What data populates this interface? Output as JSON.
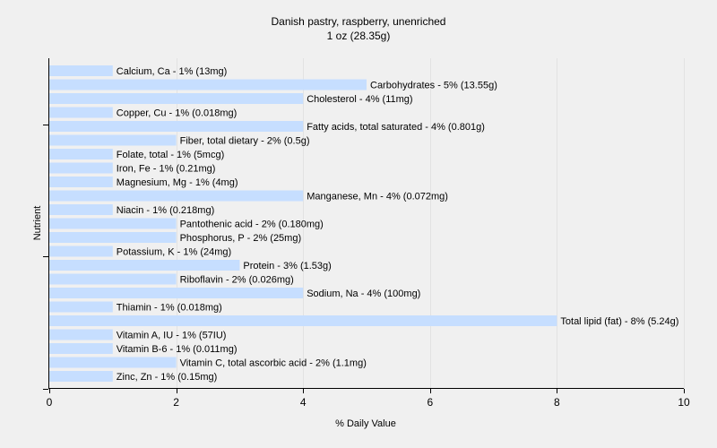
{
  "chart_data": {
    "type": "bar",
    "orientation": "horizontal",
    "title": "Danish pastry, raspberry, unenriched",
    "subtitle": "1 oz (28.35g)",
    "xlabel": "% Daily Value",
    "ylabel": "Nutrient",
    "xlim": [
      0,
      10
    ],
    "xticks": [
      0,
      2,
      4,
      6,
      8,
      10
    ],
    "grid": true,
    "bar_color": "#c6deff",
    "categories": [
      "Calcium, Ca",
      "Carbohydrates",
      "Cholesterol",
      "Copper, Cu",
      "Fatty acids, total saturated",
      "Fiber, total dietary",
      "Folate, total",
      "Iron, Fe",
      "Magnesium, Mg",
      "Manganese, Mn",
      "Niacin",
      "Pantothenic acid",
      "Phosphorus, P",
      "Potassium, K",
      "Protein",
      "Riboflavin",
      "Sodium, Na",
      "Thiamin",
      "Total lipid (fat)",
      "Vitamin A, IU",
      "Vitamin B-6",
      "Vitamin C, total ascorbic acid",
      "Zinc, Zn"
    ],
    "values": [
      1,
      5,
      4,
      1,
      4,
      2,
      1,
      1,
      1,
      4,
      1,
      2,
      2,
      1,
      3,
      2,
      4,
      1,
      8,
      1,
      1,
      2,
      1
    ],
    "labels": [
      "Calcium, Ca - 1% (13mg)",
      "Carbohydrates - 5% (13.55g)",
      "Cholesterol - 4% (11mg)",
      "Copper, Cu - 1% (0.018mg)",
      "Fatty acids, total saturated - 4% (0.801g)",
      "Fiber, total dietary - 2% (0.5g)",
      "Folate, total - 1% (5mcg)",
      "Iron, Fe - 1% (0.21mg)",
      "Magnesium, Mg - 1% (4mg)",
      "Manganese, Mn - 4% (0.072mg)",
      "Niacin - 1% (0.218mg)",
      "Pantothenic acid - 2% (0.180mg)",
      "Phosphorus, P - 2% (25mg)",
      "Potassium, K - 1% (24mg)",
      "Protein - 3% (1.53g)",
      "Riboflavin - 2% (0.026mg)",
      "Sodium, Na - 4% (100mg)",
      "Thiamin - 1% (0.018mg)",
      "Total lipid (fat) - 8% (5.24g)",
      "Vitamin A, IU - 1% (57IU)",
      "Vitamin B-6 - 1% (0.011mg)",
      "Vitamin C, total ascorbic acid - 2% (1.1mg)",
      "Zinc, Zn - 1% (0.15mg)"
    ]
  }
}
